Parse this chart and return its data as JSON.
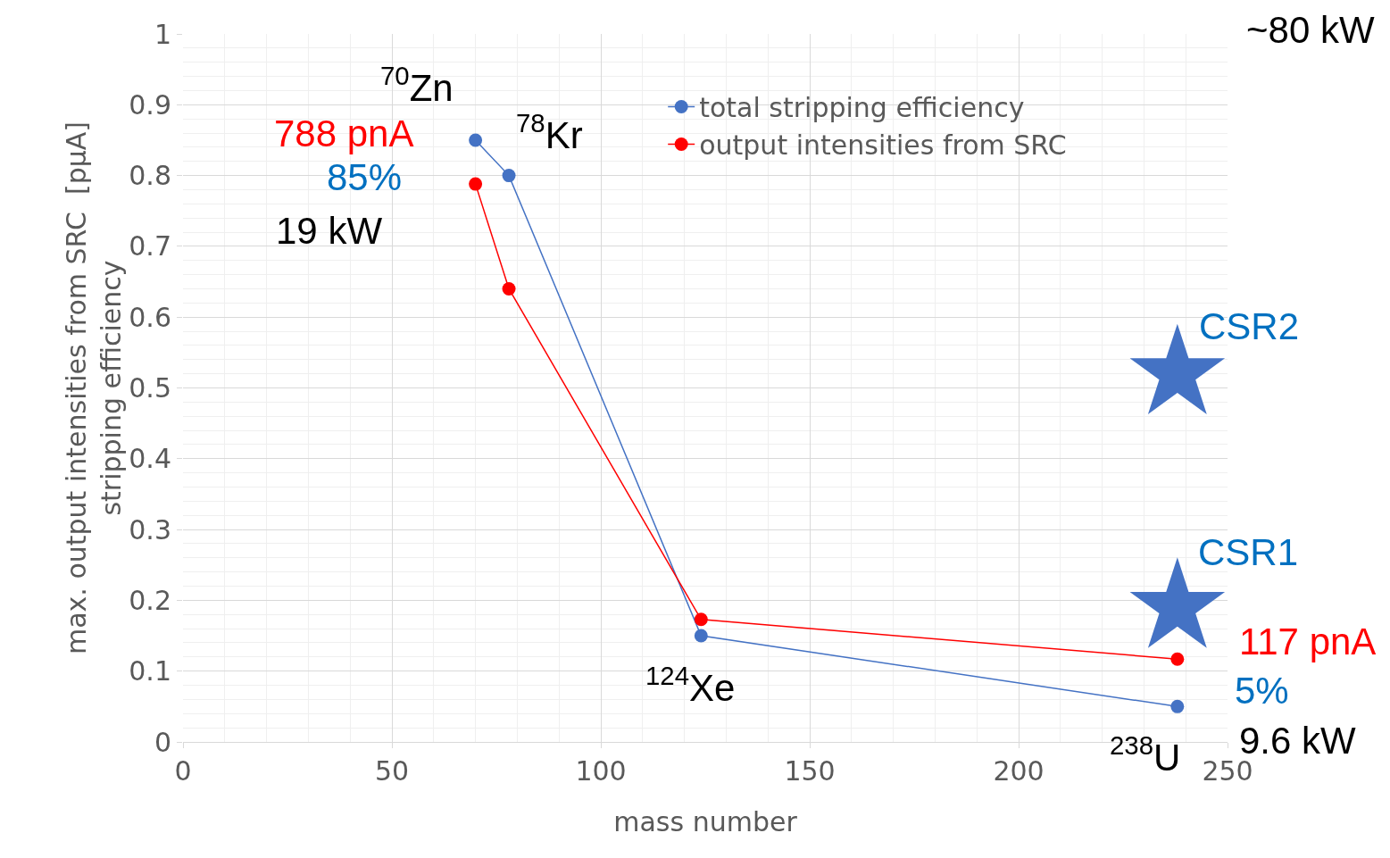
{
  "chart_data": {
    "type": "line",
    "xlabel": "mass number",
    "ylabel": "max. output intensities from SRC  [pμA]\nstripping efficiency",
    "x": [
      70,
      78,
      124,
      238
    ],
    "series": [
      {
        "name": "total stripping efficiency",
        "color": "#4472c4",
        "values": [
          0.85,
          0.8,
          0.15,
          0.05
        ],
        "value_labels": [
          "85%",
          null,
          null,
          "5%"
        ]
      },
      {
        "name": "output intensities from SRC",
        "color": "#ff0000",
        "values": [
          0.788,
          0.64,
          0.173,
          0.117
        ]
      },
      {
        "type": "scatter",
        "marker": "star",
        "color": "#4472c4",
        "x": [
          238,
          238
        ],
        "values": [
          0.52,
          0.19
        ],
        "value_labels": [
          "CSR2",
          "CSR1"
        ]
      }
    ],
    "xlim": [
      0,
      250
    ],
    "xticks": [
      0,
      50,
      100,
      150,
      200,
      250
    ],
    "ylim": [
      0,
      1
    ],
    "yticks": [
      0,
      0.1,
      0.2,
      0.3,
      0.4,
      0.5,
      0.6,
      0.7,
      0.8,
      0.9,
      1
    ],
    "grid": true,
    "legend": "top right",
    "marker": "circle",
    "line_style": "solid",
    "annotations": [
      "~80 kW",
      "$^{70}$Zn",
      "$^{78}$Kr",
      "19 kW",
      "$^{124}$Xe",
      "9.6 kW",
      "$^{238}$U",
      {
        "text": "788 pnA",
        "x": 70,
        "y": 0.788
      },
      {
        "text": "117 pnA",
        "x": 238,
        "y": 0.117
      }
    ]
  }
}
